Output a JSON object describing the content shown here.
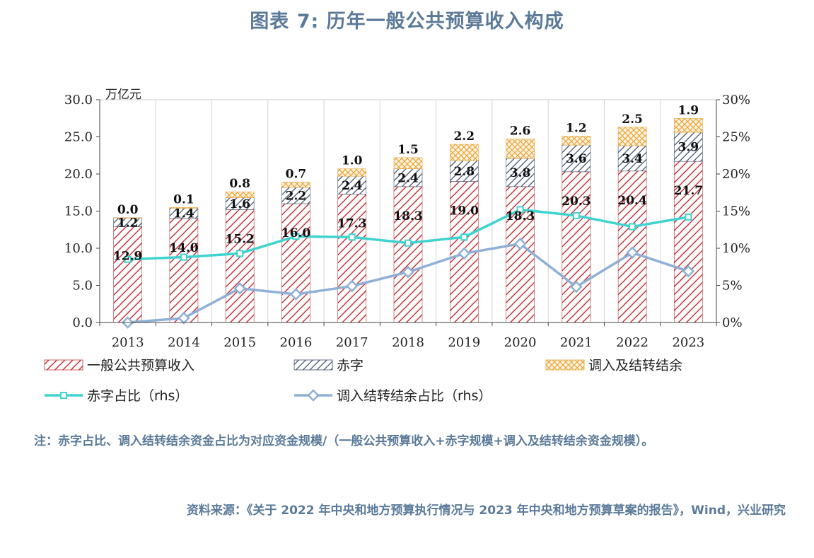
{
  "figure": {
    "title": "图表 7:  历年一般公共预算收入构成",
    "note": "注：赤字占比、调入结转结余资金占比为对应资金规模/（一般公共预算收入+赤字规模+调入及结转结余资金规模）。",
    "source": "资料来源：《关于 2022 年中央和地方预算执行情况与 2023 年中央和地方预算草案的报告》，Wind，兴业研究"
  },
  "chart_data": {
    "type": "bar",
    "stacked": true,
    "unit_label": "万亿元",
    "categories": [
      "2013",
      "2014",
      "2015",
      "2016",
      "2017",
      "2018",
      "2019",
      "2020",
      "2021",
      "2022",
      "2023"
    ],
    "y_left": {
      "lim": [
        0,
        30
      ],
      "ticks": [
        "0.0",
        "5.0",
        "10.0",
        "15.0",
        "20.0",
        "25.0",
        "30.0"
      ]
    },
    "y_right": {
      "lim": [
        0,
        30
      ],
      "ticks": [
        "0%",
        "5%",
        "10%",
        "15%",
        "20%",
        "25%",
        "30%"
      ]
    },
    "grid": "vertical",
    "legend_position": "bottom",
    "bar_series": [
      {
        "name": "一般公共预算收入",
        "color": "#c0393f",
        "pattern": "diag",
        "values": [
          12.9,
          14.0,
          15.2,
          16.0,
          17.3,
          18.3,
          19.0,
          18.3,
          20.3,
          20.4,
          21.7
        ],
        "labels": [
          "12.9",
          "14.0",
          "15.2",
          "16.0",
          "17.3",
          "18.3",
          "19.0",
          "18.3",
          "20.3",
          "20.4",
          "21.7"
        ]
      },
      {
        "name": "赤字",
        "color": "#3e4f6b",
        "pattern": "diag",
        "values": [
          1.2,
          1.4,
          1.6,
          2.2,
          2.4,
          2.4,
          2.8,
          3.8,
          3.6,
          3.4,
          3.9
        ],
        "labels": [
          "1.2",
          "1.4",
          "1.6",
          "2.2",
          "2.4",
          "2.4",
          "2.8",
          "3.8",
          "3.6",
          "3.4",
          "3.9"
        ]
      },
      {
        "name": "调入及结转结余",
        "color": "#e8a53a",
        "pattern": "cross",
        "values": [
          0.0,
          0.1,
          0.8,
          0.7,
          1.0,
          1.5,
          2.2,
          2.6,
          1.2,
          2.5,
          1.9
        ],
        "labels": [
          "0.0",
          "0.1",
          "0.8",
          "0.7",
          "1.0",
          "1.5",
          "2.2",
          "2.6",
          "1.2",
          "2.5",
          "1.9"
        ]
      }
    ],
    "line_series": [
      {
        "name": "赤字占比（rhs）",
        "color": "#3fd3cf",
        "marker": "square",
        "values": [
          8.5,
          8.8,
          9.3,
          11.6,
          11.5,
          10.7,
          11.5,
          15.2,
          14.4,
          12.9,
          14.2
        ]
      },
      {
        "name": "调入结转结余占比（rhs）",
        "color": "#8fb0d6",
        "marker": "diamond",
        "values": [
          0.0,
          0.6,
          4.6,
          3.8,
          4.9,
          6.8,
          9.3,
          10.6,
          4.8,
          9.4,
          6.9
        ]
      }
    ]
  }
}
